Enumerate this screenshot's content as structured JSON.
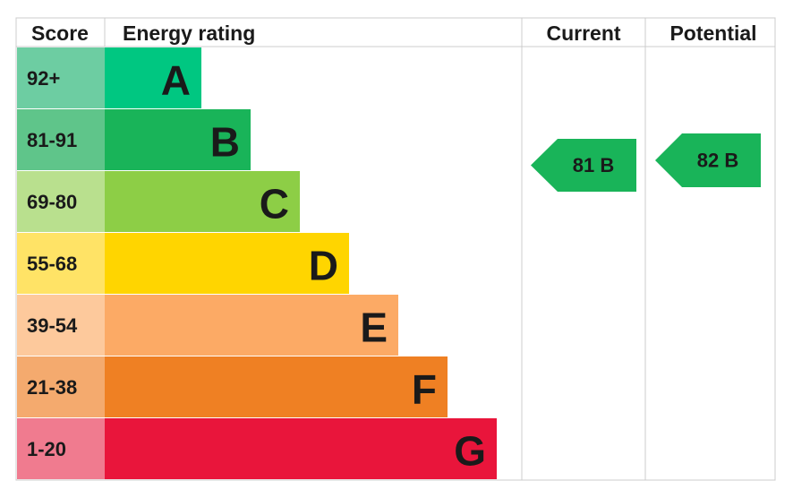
{
  "header": {
    "score": "Score",
    "energy_rating": "Energy rating",
    "current": "Current",
    "potential": "Potential"
  },
  "rows": [
    {
      "score": "92+",
      "band": "A",
      "color": "#00c781",
      "score_color": "#6dcda2"
    },
    {
      "score": "81-91",
      "band": "B",
      "color": "#19b459",
      "score_color": "#5fc58a"
    },
    {
      "score": "69-80",
      "band": "C",
      "color": "#8dce46",
      "score_color": "#b9e08e"
    },
    {
      "score": "55-68",
      "band": "D",
      "color": "#ffd500",
      "score_color": "#ffe366"
    },
    {
      "score": "39-54",
      "band": "E",
      "color": "#fcaa65",
      "score_color": "#fdc99c"
    },
    {
      "score": "21-38",
      "band": "F",
      "color": "#ef8023",
      "score_color": "#f4aa6e"
    },
    {
      "score": "1-20",
      "band": "G",
      "color": "#e9153b",
      "score_color": "#f07b8f"
    }
  ],
  "current": {
    "label": "81 B",
    "color": "#19b459"
  },
  "potential": {
    "label": "82 B",
    "color": "#19b459"
  }
}
